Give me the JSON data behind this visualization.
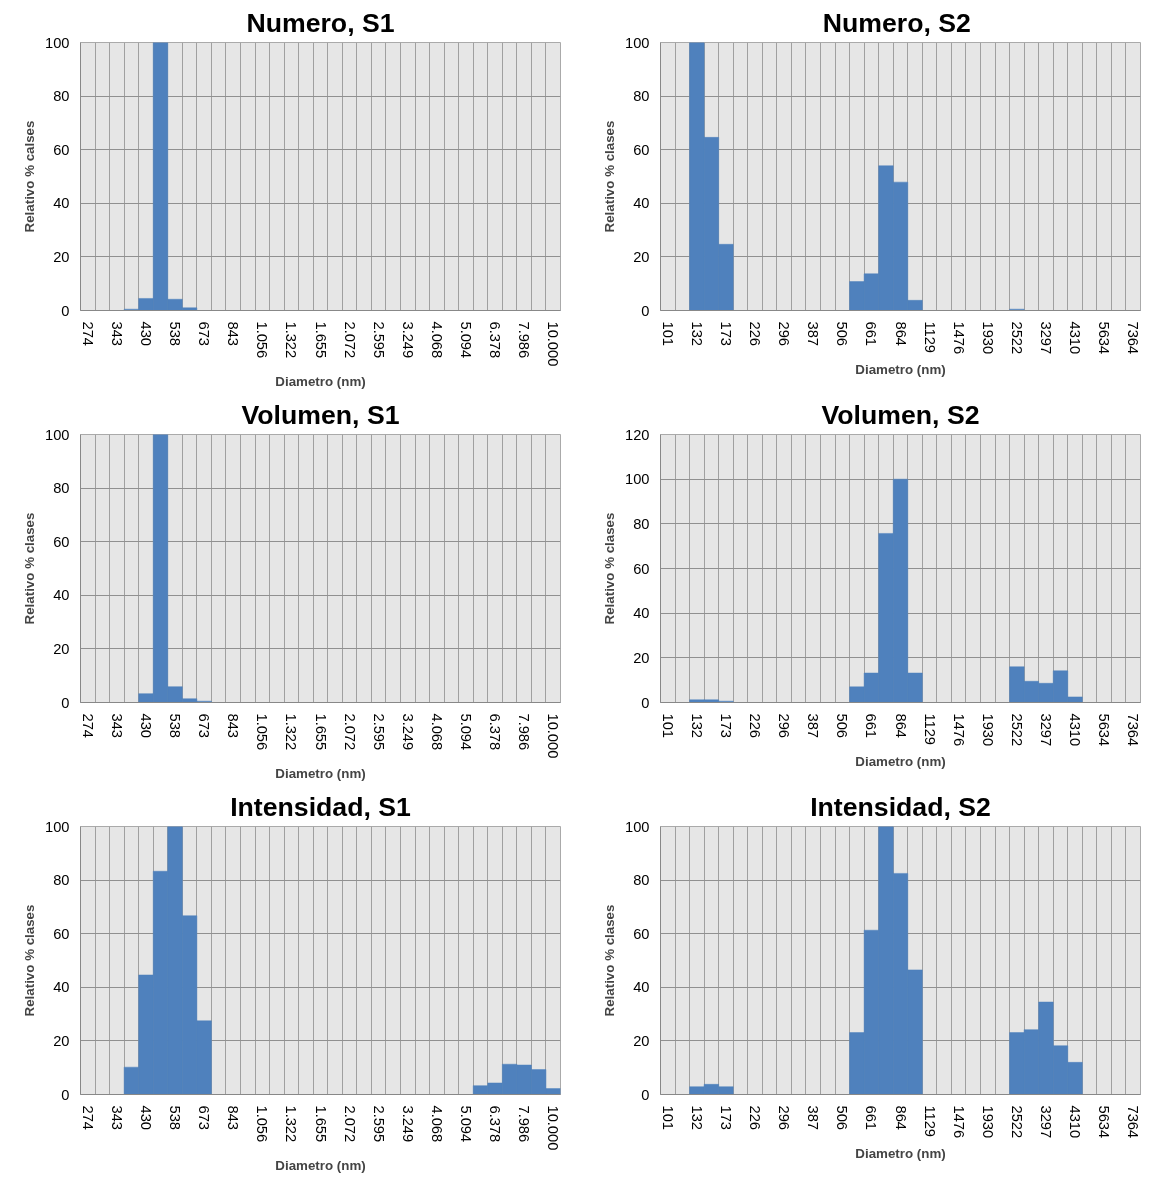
{
  "chart_data": [
    {
      "type": "bar",
      "title": "Numero, S1",
      "xlabel": "Diametro (nm)",
      "ylabel": "Relativo % calses",
      "categories": [
        "274",
        null,
        "343",
        null,
        "430",
        null,
        "538",
        null,
        "673",
        null,
        "843",
        null,
        "1.056",
        null,
        "1.322",
        null,
        "1.655",
        null,
        "2.072",
        null,
        "2.595",
        null,
        "3.249",
        null,
        "4.068",
        null,
        "5.094",
        null,
        "6.378",
        null,
        "7.986",
        null,
        "10.000"
      ],
      "series": [
        {
          "color": "#4f81bd",
          "values": [
            0,
            0,
            0,
            0.5,
            4.5,
            100,
            4.2,
            1,
            0,
            0,
            0,
            0,
            0,
            0,
            0,
            0,
            0,
            0,
            0,
            0,
            0,
            0,
            0,
            0,
            0,
            0,
            0,
            0,
            0,
            0,
            0,
            0,
            0
          ]
        }
      ],
      "ylim": [
        0,
        100
      ],
      "yticks": [
        0,
        20,
        40,
        60,
        80,
        100
      ],
      "grid": true
    },
    {
      "type": "bar",
      "title": "Numero,  S2",
      "xlabel": "Diametro (nm)",
      "ylabel": "Relativo % clases",
      "categories": [
        "101",
        null,
        "132",
        null,
        "173",
        null,
        "226",
        null,
        "296",
        null,
        "387",
        null,
        "506",
        null,
        "661",
        null,
        "864",
        null,
        "1129",
        null,
        "1476",
        null,
        "1930",
        null,
        "2522",
        null,
        "3297",
        null,
        "4310",
        null,
        "5634",
        null,
        "7364"
      ],
      "series": [
        {
          "color": "#4f81bd",
          "values": [
            0,
            0,
            100,
            64.6,
            24.7,
            0,
            0,
            0,
            0,
            0,
            0,
            0,
            0,
            10.8,
            13.7,
            54,
            47.9,
            3.8,
            0,
            0,
            0,
            0,
            0,
            0,
            0.5,
            0,
            0,
            0,
            0,
            0,
            0,
            0,
            0
          ]
        }
      ],
      "ylim": [
        0,
        100
      ],
      "yticks": [
        0,
        20,
        40,
        60,
        80,
        100
      ],
      "grid": true
    },
    {
      "type": "bar",
      "title": "Volumen, S1",
      "xlabel": "Diametro (nm)",
      "ylabel": "Relativo % clases",
      "categories": [
        "274",
        null,
        "343",
        null,
        "430",
        null,
        "538",
        null,
        "673",
        null,
        "843",
        null,
        "1.056",
        null,
        "1.322",
        null,
        "1.655",
        null,
        "2.072",
        null,
        "2.595",
        null,
        "3.249",
        null,
        "4.068",
        null,
        "5.094",
        null,
        "6.378",
        null,
        "7.986",
        null,
        "10.000"
      ],
      "series": [
        {
          "color": "#4f81bd",
          "values": [
            0,
            0,
            0,
            0,
            3.3,
            100,
            5.9,
            1.4,
            0.5,
            0,
            0,
            0,
            0,
            0,
            0,
            0,
            0,
            0,
            0,
            0,
            0,
            0,
            0,
            0,
            0,
            0,
            0,
            0,
            0,
            0,
            0,
            0,
            0
          ]
        }
      ],
      "ylim": [
        0,
        100
      ],
      "yticks": [
        0,
        20,
        40,
        60,
        80,
        100
      ],
      "grid": true
    },
    {
      "type": "bar",
      "title": "Volumen, S2",
      "xlabel": "Diametro (nm)",
      "ylabel": "Relativo % clases",
      "categories": [
        "101",
        null,
        "132",
        null,
        "173",
        null,
        "226",
        null,
        "296",
        null,
        "387",
        null,
        "506",
        null,
        "661",
        null,
        "864",
        null,
        "1129",
        null,
        "1476",
        null,
        "1930",
        null,
        "2522",
        null,
        "3297",
        null,
        "4310",
        null,
        "5634",
        null,
        "7364"
      ],
      "series": [
        {
          "color": "#4f81bd",
          "values": [
            0,
            0,
            1.2,
            1.2,
            0.6,
            0,
            0,
            0,
            0,
            0,
            0,
            0,
            0,
            7,
            13.2,
            75.7,
            100,
            13.2,
            0,
            0,
            0,
            0,
            0,
            0,
            16,
            9.5,
            8.6,
            14.2,
            2.5,
            0,
            0,
            0,
            0
          ]
        }
      ],
      "ylim": [
        0,
        120
      ],
      "yticks": [
        0,
        20,
        40,
        60,
        80,
        100,
        120
      ],
      "grid": true
    },
    {
      "type": "bar",
      "title": "Intensidad, S1",
      "xlabel": "Diametro (nm)",
      "ylabel": "Relativo % clases",
      "categories": [
        "274",
        null,
        "343",
        null,
        "430",
        null,
        "538",
        null,
        "673",
        null,
        "843",
        null,
        "1.056",
        null,
        "1.322",
        null,
        "1.655",
        null,
        "2.072",
        null,
        "2.595",
        null,
        "3.249",
        null,
        "4.068",
        null,
        "5.094",
        null,
        "6.378",
        null,
        "7.986",
        null,
        "10.000"
      ],
      "series": [
        {
          "color": "#4f81bd",
          "values": [
            0,
            0,
            0,
            10.2,
            44.6,
            83.3,
            100,
            66.7,
            27.5,
            0,
            0,
            0,
            0,
            0,
            0,
            0,
            0,
            0,
            0,
            0,
            0,
            0,
            0,
            0,
            0,
            0,
            0,
            3.3,
            4.3,
            11.3,
            11,
            9.3,
            2.2
          ]
        }
      ],
      "ylim": [
        0,
        100
      ],
      "yticks": [
        0,
        20,
        40,
        60,
        80,
        100
      ],
      "grid": true
    },
    {
      "type": "bar",
      "title": "Intensidad, S2",
      "xlabel": "Diametro (nm)",
      "ylabel": "Relativo % clases",
      "categories": [
        "101",
        null,
        "132",
        null,
        "173",
        null,
        "226",
        null,
        "296",
        null,
        "387",
        null,
        "506",
        null,
        "661",
        null,
        "864",
        null,
        "1129",
        null,
        "1476",
        null,
        "1930",
        null,
        "2522",
        null,
        "3297",
        null,
        "4310",
        null,
        "5634",
        null,
        "7364"
      ],
      "series": [
        {
          "color": "#4f81bd",
          "values": [
            0,
            0,
            2.9,
            3.8,
            2.9,
            0,
            0,
            0,
            0,
            0,
            0,
            0,
            0,
            23.1,
            61.3,
            100,
            82.5,
            46.5,
            0,
            0,
            0,
            0,
            0,
            0,
            23.1,
            24.2,
            34.5,
            18.2,
            12,
            0,
            0,
            0,
            0
          ]
        }
      ],
      "ylim": [
        0,
        100
      ],
      "yticks": [
        0,
        20,
        40,
        60,
        80,
        100
      ],
      "grid": true
    }
  ]
}
